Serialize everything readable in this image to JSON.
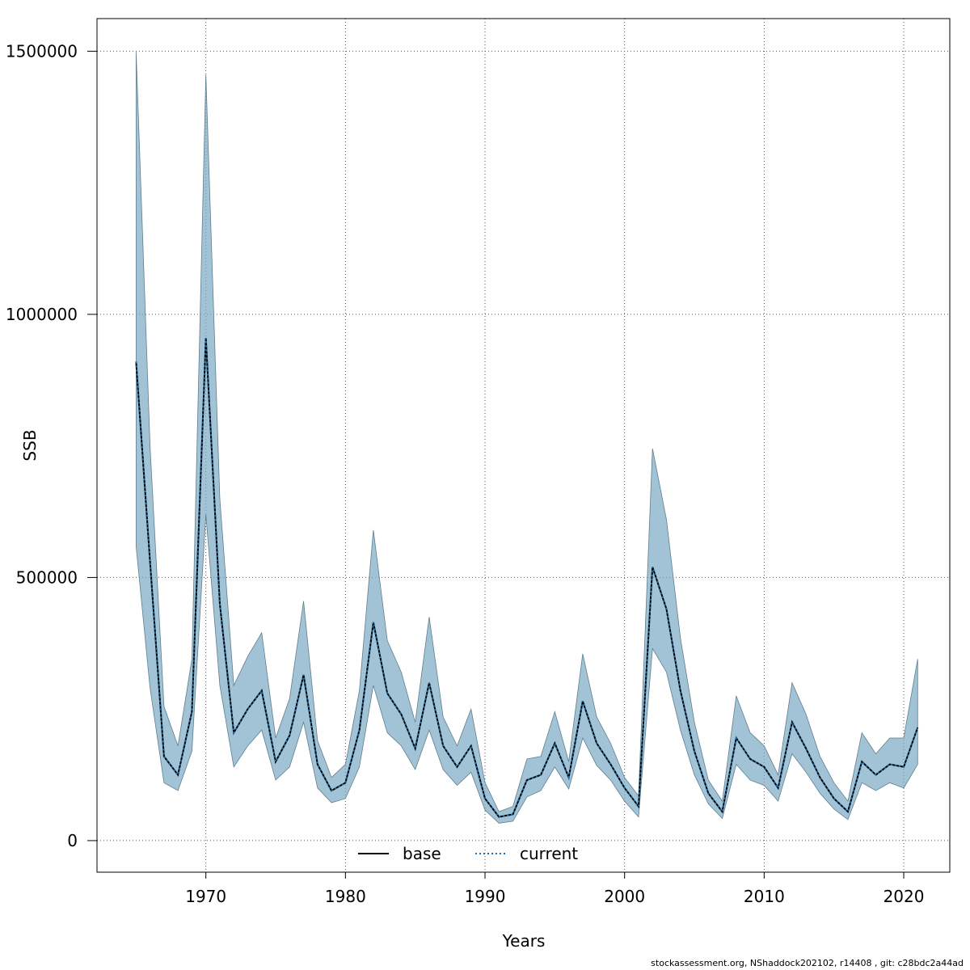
{
  "chart_data": {
    "type": "line",
    "xlabel": "Years",
    "ylabel": "SSB",
    "xlim": [
      1962.2,
      2023.3
    ],
    "ylim": [
      -60000,
      1562000
    ],
    "x_ticks": [
      1970,
      1980,
      1990,
      2000,
      2010,
      2020
    ],
    "y_ticks": [
      0,
      500000,
      1000000,
      1500000
    ],
    "y_tick_labels": [
      "0",
      "500000",
      "1000000",
      "1500000"
    ],
    "grid": true,
    "legend_placement": "bottom-center",
    "x": [
      1965,
      1966,
      1967,
      1968,
      1969,
      1970,
      1971,
      1972,
      1973,
      1974,
      1975,
      1976,
      1977,
      1978,
      1979,
      1980,
      1981,
      1982,
      1983,
      1984,
      1985,
      1986,
      1987,
      1988,
      1989,
      1990,
      1991,
      1992,
      1993,
      1994,
      1995,
      1996,
      1997,
      1998,
      1999,
      2000,
      2001,
      2002,
      2003,
      2004,
      2005,
      2006,
      2007,
      2008,
      2009,
      2010,
      2011,
      2012,
      2013,
      2014,
      2015,
      2016,
      2017,
      2018,
      2019,
      2020,
      2021
    ],
    "series": [
      {
        "name": "base",
        "style": "solid",
        "color": "#000000",
        "values": [
          910000,
          530000,
          160000,
          125000,
          245000,
          955000,
          450000,
          205000,
          250000,
          285000,
          150000,
          200000,
          315000,
          145000,
          95000,
          110000,
          210000,
          415000,
          280000,
          240000,
          175000,
          300000,
          180000,
          140000,
          180000,
          80000,
          45000,
          50000,
          115000,
          125000,
          185000,
          120000,
          265000,
          185000,
          145000,
          100000,
          65000,
          520000,
          440000,
          285000,
          170000,
          90000,
          55000,
          195000,
          155000,
          140000,
          100000,
          225000,
          175000,
          120000,
          80000,
          55000,
          150000,
          125000,
          145000,
          140000,
          215000
        ]
      },
      {
        "name": "current",
        "style": "dotted",
        "color": "#1a6faa",
        "values": [
          910000,
          530000,
          160000,
          125000,
          245000,
          955000,
          450000,
          205000,
          250000,
          285000,
          150000,
          200000,
          315000,
          145000,
          95000,
          110000,
          210000,
          415000,
          280000,
          240000,
          175000,
          300000,
          180000,
          140000,
          180000,
          80000,
          45000,
          50000,
          115000,
          125000,
          185000,
          120000,
          265000,
          185000,
          145000,
          100000,
          65000,
          520000,
          440000,
          285000,
          170000,
          90000,
          55000,
          195000,
          155000,
          140000,
          100000,
          225000,
          175000,
          120000,
          80000,
          55000,
          150000,
          125000,
          145000,
          140000,
          215000
        ]
      }
    ],
    "band": {
      "fill": "#7aa8c3",
      "stroke": "#5f7f90",
      "upper": [
        1500000,
        750000,
        255000,
        180000,
        345000,
        1455000,
        650000,
        295000,
        350000,
        395000,
        195000,
        270000,
        455000,
        190000,
        120000,
        145000,
        285000,
        590000,
        380000,
        320000,
        225000,
        425000,
        235000,
        180000,
        250000,
        110000,
        55000,
        65000,
        155000,
        160000,
        245000,
        150000,
        355000,
        235000,
        185000,
        120000,
        85000,
        745000,
        610000,
        385000,
        225000,
        115000,
        75000,
        275000,
        205000,
        180000,
        125000,
        300000,
        240000,
        160000,
        110000,
        75000,
        205000,
        165000,
        195000,
        195000,
        345000
      ],
      "lower": [
        560000,
        290000,
        110000,
        95000,
        170000,
        620000,
        295000,
        140000,
        180000,
        210000,
        115000,
        140000,
        225000,
        100000,
        72000,
        80000,
        140000,
        295000,
        205000,
        180000,
        135000,
        210000,
        135000,
        105000,
        130000,
        58000,
        33000,
        37000,
        83000,
        95000,
        140000,
        98000,
        195000,
        143000,
        115000,
        75000,
        45000,
        365000,
        320000,
        210000,
        125000,
        70000,
        42000,
        145000,
        115000,
        105000,
        75000,
        165000,
        130000,
        90000,
        60000,
        40000,
        110000,
        95000,
        110000,
        100000,
        145000
      ]
    }
  },
  "footer": {
    "text": "stockassessment.org, NShaddock202102, r14408 , git: c28bdc2a44ad"
  }
}
